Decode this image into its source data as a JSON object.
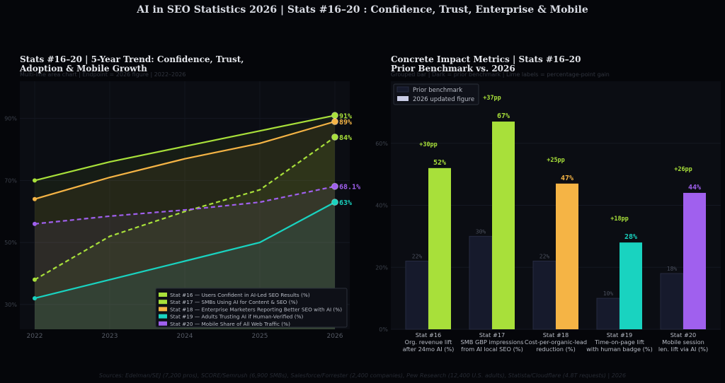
{
  "page": {
    "title": "AI in SEO Statistics 2026  |  Stats #16–20 : Confidence, Trust, Enterprise & Mobile",
    "sources": "Sources: Edelman/SEJ (7,200 pros), SCORE/Semrush (6,900 SMBs), Salesforce/Forrester (2,400 companies), Pew Research (12,400 U.S. adults), Statista/Cloudflare (4.8T requests) | 2026"
  },
  "colors": {
    "background": "#05060a",
    "panel": "#0b0d13",
    "lime": "#a8e03a",
    "orange": "#f5b445",
    "teal": "#19d3c0",
    "purple": "#a060ee",
    "prior": "#161a2c"
  },
  "chart_data": [
    {
      "type": "line",
      "title_line1": "Stats #16–20  |  5-Year Trend: Confidence, Trust,",
      "title_line2": "Adoption & Mobile Growth",
      "subtitle": "Multi-line area chart  |  Endpoint = 2026 figure  |  2022–2026",
      "x": [
        "2022",
        "2023",
        "2024",
        "2025",
        "2026"
      ],
      "ylim": [
        22,
        102
      ],
      "yticks": [
        30,
        50,
        70,
        90
      ],
      "ytick_labels": [
        "30%",
        "50%",
        "70%",
        "90%"
      ],
      "legend_position": "bottom-right",
      "series": [
        {
          "name": "Stat #16 — Users Confident in AI-Led SEO Results (%)",
          "color": "#a8e03a",
          "style": "solid",
          "values": [
            70,
            76,
            81,
            86,
            91
          ],
          "end_label": "91%"
        },
        {
          "name": "Stat #17 — SMBs Using AI for Content & SEO (%)",
          "color": "#a8e03a",
          "style": "dashed",
          "values": [
            38,
            52,
            60,
            67,
            84
          ],
          "end_label": "84%"
        },
        {
          "name": "Stat #18 — Enterprise Marketers Reporting Better SEO with AI (%)",
          "color": "#f5b445",
          "style": "solid",
          "values": [
            64,
            71,
            77,
            82,
            89
          ],
          "end_label": "89%"
        },
        {
          "name": "Stat #19 — Adults Trusting AI if Human-Verified (%)",
          "color": "#19d3c0",
          "style": "solid",
          "values": [
            32,
            38,
            44,
            50,
            63
          ],
          "end_label": "63%"
        },
        {
          "name": "Stat #20 — Mobile Share of All Web Traffic (%)",
          "color": "#a060ee",
          "style": "dashed",
          "values": [
            56,
            58.5,
            60.5,
            63,
            68.1
          ],
          "end_label": "68.1%"
        }
      ]
    },
    {
      "type": "bar",
      "title_line1": "Concrete Impact Metrics  |  Stats #16–20",
      "title_line2": "Prior Benchmark vs. 2026",
      "subtitle": "Grouped bar  |  Dark = prior benchmark  |  Lime labels = percentage-point gain",
      "ylim": [
        0,
        80
      ],
      "yticks": [
        0,
        20,
        40,
        60
      ],
      "ytick_labels": [
        "0%",
        "20%",
        "40%",
        "60%"
      ],
      "legend": [
        "Prior benchmark",
        "2026 updated figure"
      ],
      "legend_position": "top-left",
      "categories": [
        {
          "line1": "Stat #16",
          "line2": "Org. revenue lift",
          "line3": "after 24mo AI (%)"
        },
        {
          "line1": "Stat #17",
          "line2": "SMB GBP impressions",
          "line3": "from AI local SEO (%)"
        },
        {
          "line1": "Stat #18",
          "line2": "Cost-per-organic-lead",
          "line3": "reduction (%)"
        },
        {
          "line1": "Stat #19",
          "line2": "Time-on-page lift",
          "line3": "with human badge (%)"
        },
        {
          "line1": "Stat #20",
          "line2": "Mobile session",
          "line3": "len. lift via AI (%)"
        }
      ],
      "series": [
        {
          "name": "Prior benchmark",
          "values": [
            22,
            30,
            22,
            10,
            18
          ],
          "labels": [
            "22%",
            "30%",
            "22%",
            "10%",
            "18%"
          ]
        },
        {
          "name": "2026 updated figure",
          "values": [
            52,
            67,
            47,
            28,
            44
          ],
          "labels": [
            "52%",
            "67%",
            "47%",
            "28%",
            "44%"
          ],
          "colors": [
            "#a8e03a",
            "#a8e03a",
            "#f5b445",
            "#19d3c0",
            "#a060ee"
          ]
        }
      ],
      "gains": [
        "+30pp",
        "+37pp",
        "+25pp",
        "+18pp",
        "+26pp"
      ]
    }
  ]
}
